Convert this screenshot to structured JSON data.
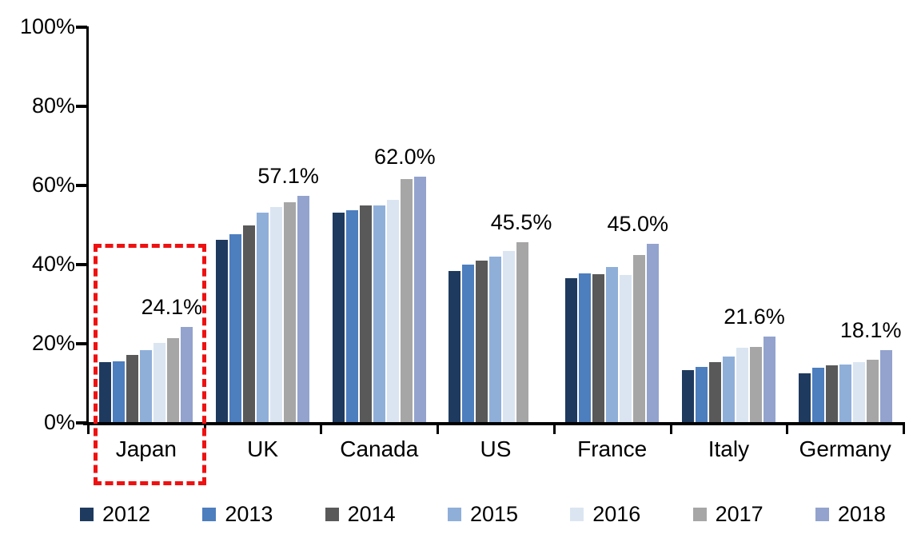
{
  "chart_data": {
    "type": "bar",
    "title": "",
    "unit": "percent",
    "categories": [
      "Japan",
      "UK",
      "Canada",
      "US",
      "France",
      "Italy",
      "Germany"
    ],
    "series": [
      {
        "name": "2012",
        "color": "#1f3a5f",
        "values": [
          15.1,
          46.0,
          53.0,
          38.2,
          36.4,
          13.2,
          12.4
        ]
      },
      {
        "name": "2013",
        "color": "#4d7ebe",
        "values": [
          15.3,
          47.5,
          53.5,
          39.8,
          37.5,
          13.9,
          13.8
        ]
      },
      {
        "name": "2014",
        "color": "#595959",
        "values": [
          16.9,
          49.7,
          54.8,
          40.8,
          37.4,
          15.1,
          14.3
        ]
      },
      {
        "name": "2015",
        "color": "#8fafd9",
        "values": [
          18.2,
          53.0,
          54.8,
          41.8,
          39.2,
          16.6,
          14.6
        ]
      },
      {
        "name": "2016",
        "color": "#dbe5f2",
        "values": [
          20.0,
          54.4,
          56.1,
          43.3,
          37.2,
          18.7,
          15.2
        ]
      },
      {
        "name": "2017",
        "color": "#a6a6a6",
        "values": [
          21.3,
          55.6,
          61.5,
          45.5,
          42.2,
          19.0,
          15.8
        ]
      },
      {
        "name": "2018",
        "color": "#93a3cd",
        "values": [
          24.1,
          57.1,
          62.0,
          null,
          45.0,
          21.6,
          18.1
        ]
      }
    ],
    "data_labels": [
      {
        "category": "Japan",
        "text": "24.1%"
      },
      {
        "category": "UK",
        "text": "57.1%"
      },
      {
        "category": "Canada",
        "text": "62.0%"
      },
      {
        "category": "US",
        "text": "45.5%"
      },
      {
        "category": "France",
        "text": "45.0%"
      },
      {
        "category": "Italy",
        "text": "21.6%"
      },
      {
        "category": "Germany",
        "text": "18.1%"
      }
    ],
    "ylim": [
      0,
      100
    ],
    "yticks": [
      {
        "value": 0,
        "label": "0%"
      },
      {
        "value": 20,
        "label": "20%"
      },
      {
        "value": 40,
        "label": "40%"
      },
      {
        "value": 60,
        "label": "60%"
      },
      {
        "value": 80,
        "label": "80%"
      },
      {
        "value": 100,
        "label": "100%"
      }
    ],
    "grid": false,
    "legend_position": "bottom",
    "annotation": {
      "type": "dashed-rectangle",
      "color": "#ee1111",
      "highlights": "Japan"
    }
  }
}
